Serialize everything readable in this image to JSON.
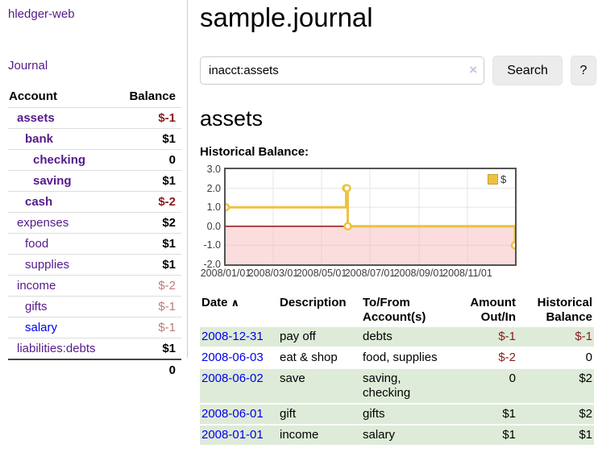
{
  "sidebar": {
    "app_title": "hledger-web",
    "journal_link": "Journal",
    "header": {
      "account": "Account",
      "balance": "Balance"
    },
    "accounts": [
      {
        "name": "assets",
        "balance": "$-1"
      },
      {
        "name": "bank",
        "balance": "$1"
      },
      {
        "name": "checking",
        "balance": "0"
      },
      {
        "name": "saving",
        "balance": "$1"
      },
      {
        "name": "cash",
        "balance": "$-2"
      },
      {
        "name": "expenses",
        "balance": "$2"
      },
      {
        "name": "food",
        "balance": "$1"
      },
      {
        "name": "supplies",
        "balance": "$1"
      },
      {
        "name": "income",
        "balance": "$-2"
      },
      {
        "name": "gifts",
        "balance": "$-1"
      },
      {
        "name": "salary",
        "balance": "$-1"
      },
      {
        "name": "liabilities:debts",
        "balance": "$1"
      }
    ],
    "total": "0"
  },
  "main": {
    "title": "sample.journal",
    "search": {
      "value": "inacct:assets",
      "clear_icon": "×",
      "button_label": "Search",
      "help_label": "?"
    },
    "heading": "assets",
    "chart_label": "Historical Balance:"
  },
  "chart_data": {
    "type": "line",
    "step": true,
    "title": "Historical Balance:",
    "legend": [
      {
        "label": "$",
        "color": "#EDC240"
      }
    ],
    "legend_position": "top-right",
    "grid": true,
    "y_tick_labels": [
      "3.0",
      "2.0",
      "1.0",
      "0.0",
      "-1.0",
      "-2.0"
    ],
    "ylim": [
      -2,
      3
    ],
    "x_tick_labels": [
      "2008/01/01",
      "2008/03/01",
      "2008/05/01",
      "2008/07/01",
      "2008/09/01",
      "2008/11/01"
    ],
    "x_tick_days": [
      0,
      60,
      121,
      182,
      244,
      305
    ],
    "xlim_days": [
      0,
      365
    ],
    "points": [
      {
        "date": "2008-01-01",
        "day": 0,
        "value": 1
      },
      {
        "date": "2008-06-01",
        "day": 152,
        "value": 2
      },
      {
        "date": "2008-06-02",
        "day": 153,
        "value": 2
      },
      {
        "date": "2008-06-03",
        "day": 154,
        "value": 0
      },
      {
        "date": "2008-12-31",
        "day": 365,
        "value": -1
      }
    ],
    "line_color": "#EDC240",
    "negative_fill": "#F5AFAF",
    "zero_line_color": "#8B0000"
  },
  "register": {
    "headers": {
      "date": "Date",
      "sort_asc_icon": "∧",
      "description": "Description",
      "accounts": "To/From Account(s)",
      "amount": "Amount Out/In",
      "balance": "Historical Balance"
    },
    "rows": [
      {
        "date": "2008-12-31",
        "description": "pay off",
        "accounts": "debts",
        "amount": "$-1",
        "balance": "$-1"
      },
      {
        "date": "2008-06-03",
        "description": "eat & shop",
        "accounts": "food, supplies",
        "amount": "$-2",
        "balance": "0"
      },
      {
        "date": "2008-06-02",
        "description": "save",
        "accounts": "saving, checking",
        "amount": "0",
        "balance": "$2"
      },
      {
        "date": "2008-06-01",
        "description": "gift",
        "accounts": "gifts",
        "amount": "$1",
        "balance": "$2"
      },
      {
        "date": "2008-01-01",
        "description": "income",
        "accounts": "salary",
        "amount": "$1",
        "balance": "$1"
      }
    ]
  }
}
